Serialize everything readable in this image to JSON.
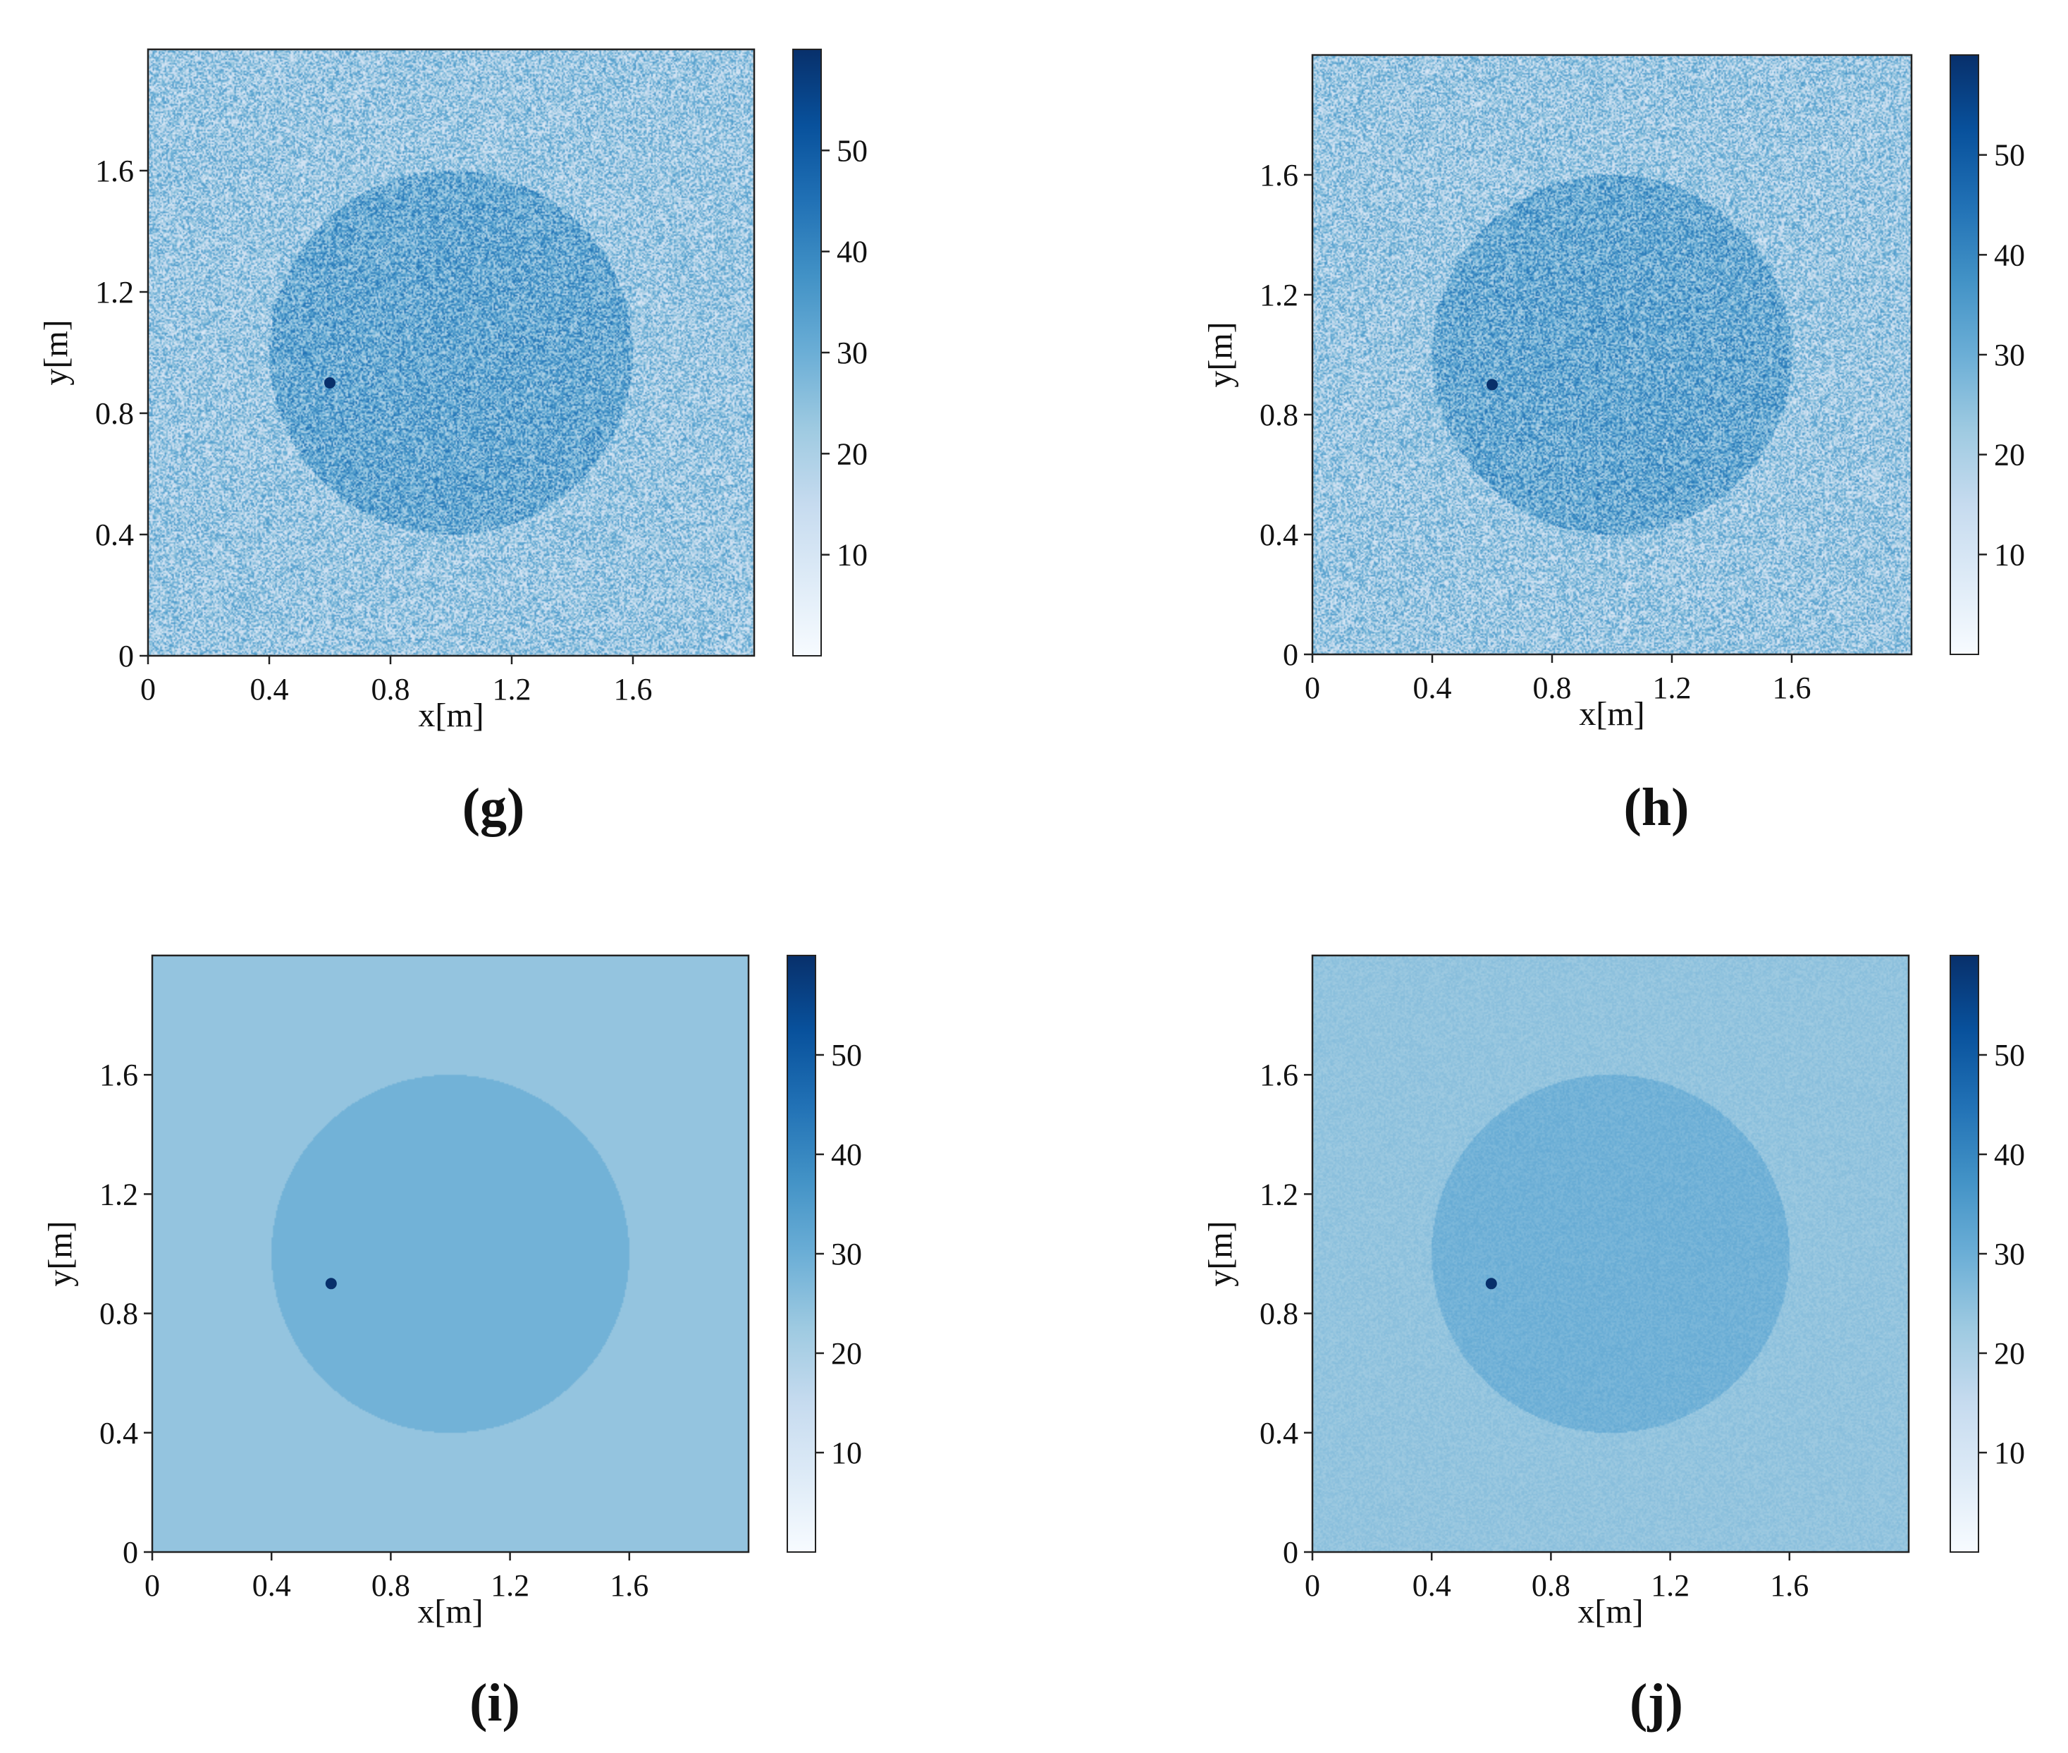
{
  "panels": [
    {
      "label": "(g)",
      "reconstruction": "noisy"
    },
    {
      "label": "(h)",
      "reconstruction": "noisy"
    },
    {
      "label": "(i)",
      "reconstruction": "smooth"
    },
    {
      "label": "(j)",
      "reconstruction": "smooth"
    }
  ],
  "colors": {
    "colormap": [
      "#f7fbff",
      "#deebf7",
      "#c6dbef",
      "#9ecae1",
      "#6baed6",
      "#4292c6",
      "#2171b5",
      "#08519c",
      "#08306b"
    ],
    "axis": "#222222",
    "background": "#ffffff"
  },
  "chart_data": [
    {
      "type": "heatmap",
      "title": "(g)",
      "xlabel": "x[m]",
      "ylabel": "y[m]",
      "xlim": [
        0,
        2.0
      ],
      "ylim": [
        0,
        2.0
      ],
      "xticks": [
        "0",
        "0.4",
        "0.8",
        "1.2",
        "1.6"
      ],
      "yticks": [
        "0",
        "0.4",
        "0.8",
        "1.2",
        "1.6"
      ],
      "colorbar": {
        "range": [
          0,
          60
        ],
        "ticks": [
          "10",
          "20",
          "30",
          "40",
          "50"
        ]
      },
      "background_level": 22,
      "noise_amplitude": 14,
      "inclusion": {
        "shape": "circle",
        "center": [
          1.0,
          1.0
        ],
        "radius": 0.6,
        "level": 31
      },
      "point_target": {
        "x": 0.6,
        "y": 0.9,
        "level": 60
      }
    },
    {
      "type": "heatmap",
      "title": "(h)",
      "xlabel": "x[m]",
      "ylabel": "y[m]",
      "xlim": [
        0,
        2.0
      ],
      "ylim": [
        0,
        2.0
      ],
      "xticks": [
        "0",
        "0.4",
        "0.8",
        "1.2",
        "1.6"
      ],
      "yticks": [
        "0",
        "0.4",
        "0.8",
        "1.2",
        "1.6"
      ],
      "colorbar": {
        "range": [
          0,
          60
        ],
        "ticks": [
          "10",
          "20",
          "30",
          "40",
          "50"
        ]
      },
      "background_level": 22,
      "noise_amplitude": 14,
      "inclusion": {
        "shape": "circle",
        "center": [
          1.0,
          1.0
        ],
        "radius": 0.6,
        "level": 31
      },
      "point_target": {
        "x": 0.6,
        "y": 0.9,
        "level": 60
      }
    },
    {
      "type": "heatmap",
      "title": "(i)",
      "xlabel": "x[m]",
      "ylabel": "y[m]",
      "xlim": [
        0,
        2.0
      ],
      "ylim": [
        0,
        2.0
      ],
      "xticks": [
        "0",
        "0.4",
        "0.8",
        "1.2",
        "1.6"
      ],
      "yticks": [
        "0",
        "0.4",
        "0.8",
        "1.2",
        "1.6"
      ],
      "colorbar": {
        "range": [
          0,
          60
        ],
        "ticks": [
          "10",
          "20",
          "30",
          "40",
          "50"
        ]
      },
      "background_level": 24,
      "noise_amplitude": 0,
      "inclusion": {
        "shape": "circle",
        "center": [
          1.0,
          1.0
        ],
        "radius": 0.6,
        "level": 29
      },
      "point_target": {
        "x": 0.6,
        "y": 0.9,
        "level": 60
      }
    },
    {
      "type": "heatmap",
      "title": "(j)",
      "xlabel": "x[m]",
      "ylabel": "y[m]",
      "xlim": [
        0,
        2.0
      ],
      "ylim": [
        0,
        2.0
      ],
      "xticks": [
        "0",
        "0.4",
        "0.8",
        "1.2",
        "1.6"
      ],
      "yticks": [
        "0",
        "0.4",
        "0.8",
        "1.2",
        "1.6"
      ],
      "colorbar": {
        "range": [
          0,
          60
        ],
        "ticks": [
          "10",
          "20",
          "30",
          "40",
          "50"
        ]
      },
      "background_level": 24,
      "noise_amplitude": 2,
      "inclusion": {
        "shape": "circle",
        "center": [
          1.0,
          1.0
        ],
        "radius": 0.6,
        "level": 29
      },
      "point_target": {
        "x": 0.6,
        "y": 0.9,
        "level": 60
      }
    }
  ]
}
